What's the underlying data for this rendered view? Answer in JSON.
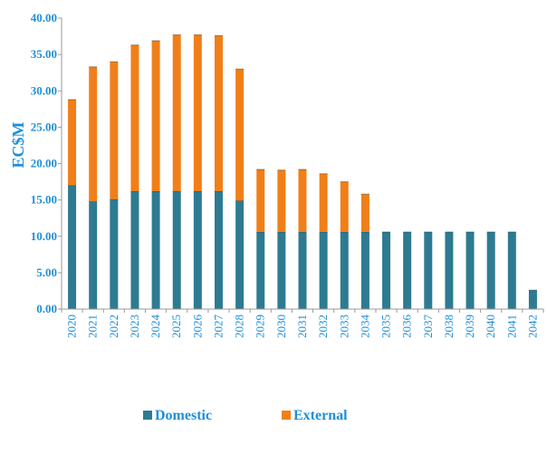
{
  "chart_data": {
    "type": "bar",
    "stacked": true,
    "title": "",
    "xlabel": "",
    "ylabel": "EC$M",
    "ylim": [
      0,
      40
    ],
    "yticks": [
      "0.00",
      "5.00",
      "10.00",
      "15.00",
      "20.00",
      "25.00",
      "30.00",
      "35.00",
      "40.00"
    ],
    "grid": false,
    "legend_position": "bottom",
    "categories": [
      "2020",
      "2021",
      "2022",
      "2023",
      "2024",
      "2025",
      "2026",
      "2027",
      "2028",
      "2029",
      "2030",
      "2031",
      "2032",
      "2033",
      "2034",
      "2035",
      "2036",
      "2037",
      "2038",
      "2039",
      "2040",
      "2041",
      "2042"
    ],
    "series": [
      {
        "name": "Domestic",
        "color": "#2e7b91",
        "values": [
          17.0,
          14.8,
          15.1,
          16.2,
          16.2,
          16.2,
          16.2,
          16.2,
          14.9,
          10.6,
          10.6,
          10.6,
          10.6,
          10.6,
          10.6,
          10.6,
          10.6,
          10.6,
          10.6,
          10.6,
          10.6,
          10.6,
          2.6
        ]
      },
      {
        "name": "External",
        "color": "#f07f19",
        "values": [
          11.8,
          18.5,
          18.9,
          20.1,
          20.7,
          21.5,
          21.5,
          21.4,
          18.1,
          8.6,
          8.5,
          8.6,
          8.0,
          6.9,
          5.2,
          0.0,
          0.0,
          0.0,
          0.0,
          0.0,
          0.0,
          0.0,
          0.0
        ]
      }
    ]
  }
}
